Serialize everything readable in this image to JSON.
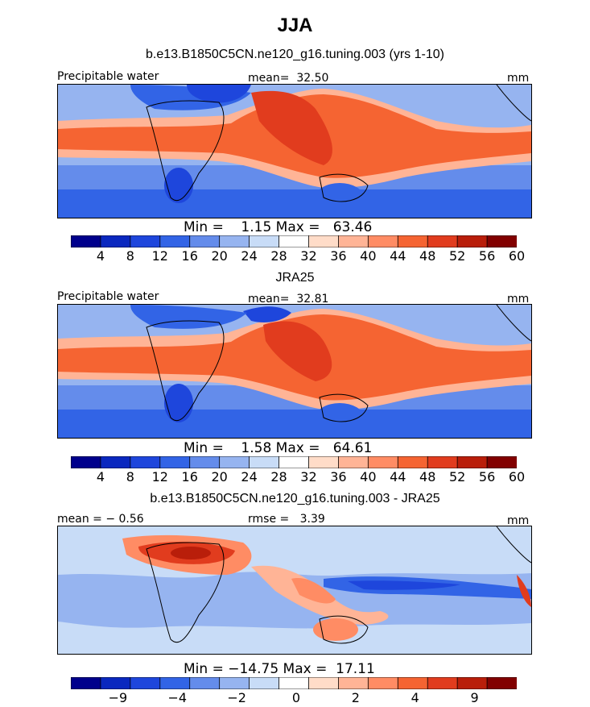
{
  "figure": {
    "title": "JJA"
  },
  "chart_data": [
    {
      "type": "heatmap",
      "title": "b.e13.B1850C5CN.ne120_g16.tuning.003 (yrs 1-10)",
      "left_label": "Precipitable water",
      "center_label": "mean=  32.50",
      "right_label": "mm",
      "mean": 32.5,
      "min_max_text": "Min =    1.15 Max =   63.46",
      "min": 1.15,
      "max": 63.46,
      "colorbar_levels": [
        4,
        8,
        12,
        16,
        20,
        24,
        28,
        32,
        36,
        40,
        44,
        48,
        52,
        56,
        60
      ],
      "colorbar_colors": [
        "#00008c",
        "#0a28bf",
        "#1e46dc",
        "#3264e6",
        "#648ceb",
        "#96b4f0",
        "#c8dcf7",
        "#ffffff",
        "#ffdcc8",
        "#ffb496",
        "#ff8c64",
        "#f56432",
        "#e13c1e",
        "#b91e0a",
        "#820000"
      ]
    },
    {
      "type": "heatmap",
      "title": "JRA25",
      "left_label": "Precipitable water",
      "center_label": "mean=  32.81",
      "right_label": "mm",
      "mean": 32.81,
      "min_max_text": "Min =    1.58 Max =   64.61",
      "min": 1.58,
      "max": 64.61,
      "colorbar_levels": [
        4,
        8,
        12,
        16,
        20,
        24,
        28,
        32,
        36,
        40,
        44,
        48,
        52,
        56,
        60
      ],
      "colorbar_colors": [
        "#00008c",
        "#0a28bf",
        "#1e46dc",
        "#3264e6",
        "#648ceb",
        "#96b4f0",
        "#c8dcf7",
        "#ffffff",
        "#ffdcc8",
        "#ffb496",
        "#ff8c64",
        "#f56432",
        "#e13c1e",
        "#b91e0a",
        "#820000"
      ]
    },
    {
      "type": "heatmap",
      "title": "b.e13.B1850C5CN.ne120_g16.tuning.003 - JRA25",
      "left_label": "mean = − 0.56",
      "center_label": "rmse =   3.39",
      "right_label": "mm",
      "mean": -0.56,
      "rmse": 3.39,
      "min_max_text": "Min = −14.75 Max =  17.11",
      "min": -14.75,
      "max": 17.11,
      "colorbar_levels": [
        "−9",
        "−4",
        "−2",
        "0",
        "2",
        "4",
        "9"
      ],
      "colorbar_colors": [
        "#00008c",
        "#0a28bf",
        "#1e46dc",
        "#3264e6",
        "#648ceb",
        "#96b4f0",
        "#c8dcf7",
        "#ffffff",
        "#ffdcc8",
        "#ffb496",
        "#ff8c64",
        "#f56432",
        "#e13c1e",
        "#b91e0a",
        "#820000"
      ]
    }
  ]
}
